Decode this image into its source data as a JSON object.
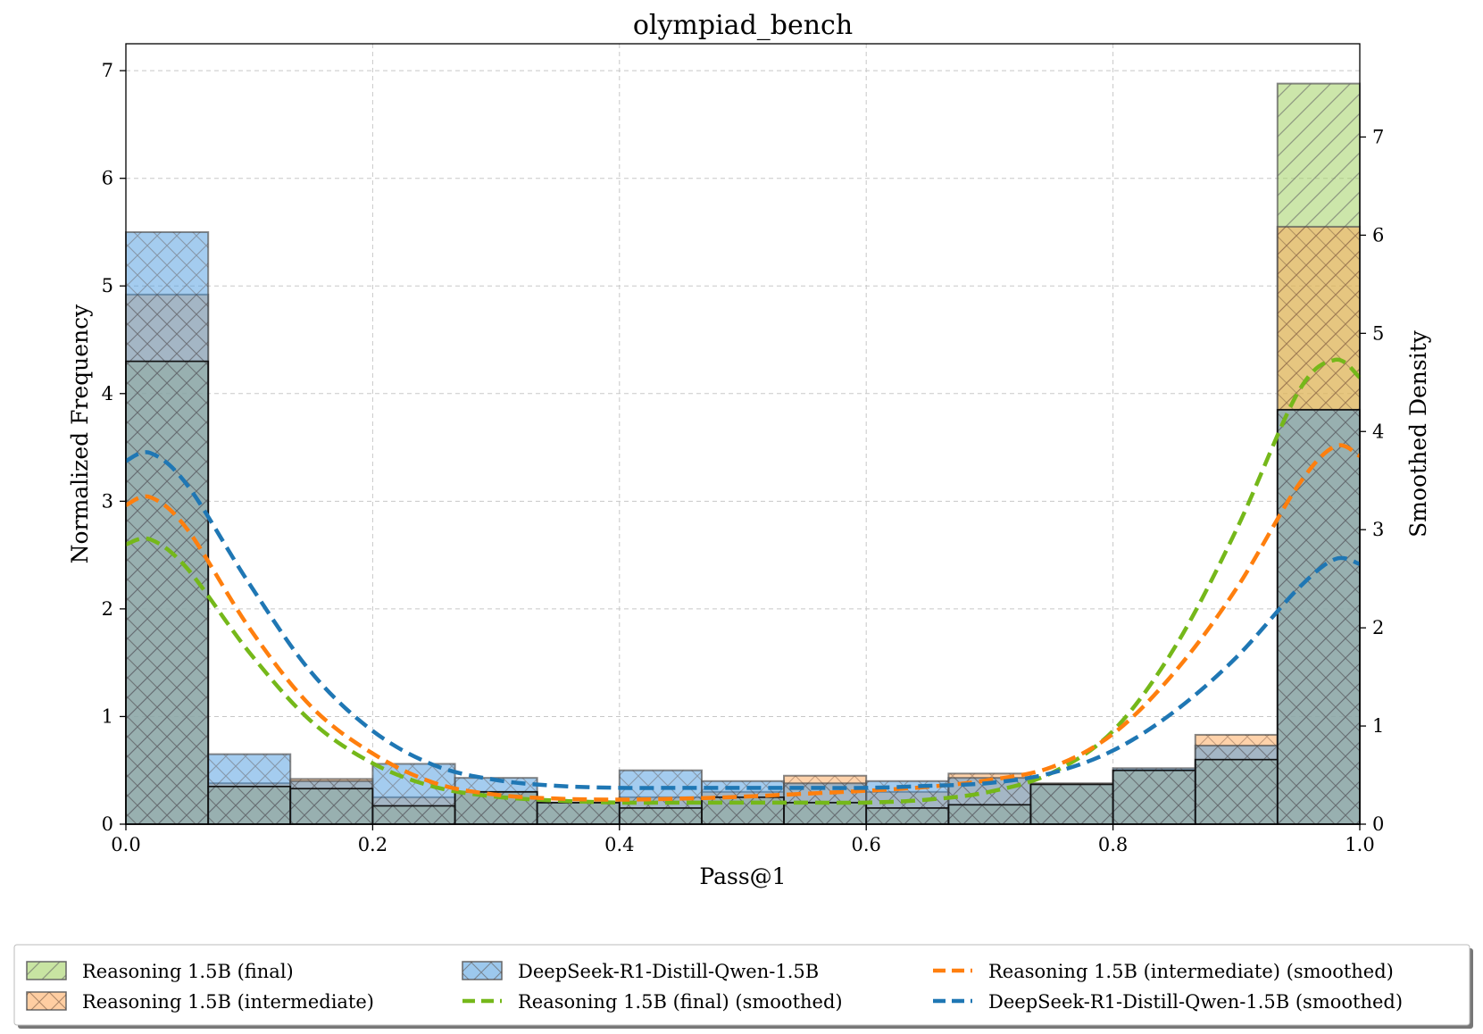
{
  "chart_data": {
    "type": "bar",
    "title": "olympiad_bench",
    "xlabel": "Pass@1",
    "ylabel": "Normalized Frequency",
    "y2label": "Smoothed Density",
    "xlim": [
      0.0,
      1.0
    ],
    "ylim": [
      0,
      7.25
    ],
    "y2lim": [
      0,
      7.95
    ],
    "grid": true,
    "legend_position": "bottom",
    "x_ticks": [
      "0.0",
      "0.2",
      "0.4",
      "0.6",
      "0.8",
      "1.0"
    ],
    "y_ticks": [
      "0",
      "1",
      "2",
      "3",
      "4",
      "5",
      "6",
      "7"
    ],
    "y2_ticks": [
      "0",
      "1",
      "2",
      "3",
      "4",
      "5",
      "6",
      "7"
    ],
    "bin_edges": [
      0.0,
      0.0667,
      0.1333,
      0.2,
      0.2667,
      0.3333,
      0.4,
      0.4667,
      0.5333,
      0.6,
      0.6667,
      0.7333,
      0.8,
      0.8667,
      0.9333,
      1.0
    ],
    "series": [
      {
        "name": "Reasoning 1.5B (final)",
        "kind": "histogram",
        "color": "#9ACD56",
        "hatch": "/",
        "values": [
          4.3,
          0.35,
          0.33,
          0.17,
          0.3,
          0.2,
          0.15,
          0.25,
          0.2,
          0.15,
          0.18,
          0.37,
          0.5,
          0.6,
          6.88
        ]
      },
      {
        "name": "Reasoning 1.5B (intermediate)",
        "kind": "histogram",
        "color": "#FFA556",
        "hatch": "x",
        "values": [
          4.92,
          0.38,
          0.42,
          0.25,
          0.3,
          0.2,
          0.25,
          0.3,
          0.45,
          0.3,
          0.47,
          0.38,
          0.5,
          0.83,
          5.55
        ]
      },
      {
        "name": "DeepSeek-R1-Distill-Qwen-1.5B",
        "kind": "histogram",
        "color": "#4A9ADF",
        "hatch": "x",
        "values": [
          5.5,
          0.65,
          0.4,
          0.56,
          0.43,
          0.2,
          0.5,
          0.4,
          0.38,
          0.4,
          0.43,
          0.37,
          0.52,
          0.73,
          3.85
        ]
      },
      {
        "name": "Reasoning 1.5B (final) (smoothed)",
        "kind": "density",
        "color": "#75B81A",
        "x": [
          0.0,
          0.02,
          0.05,
          0.1,
          0.15,
          0.2,
          0.25,
          0.3,
          0.35,
          0.4,
          0.45,
          0.5,
          0.55,
          0.6,
          0.65,
          0.7,
          0.75,
          0.8,
          0.85,
          0.9,
          0.95,
          0.98,
          1.0
        ],
        "y": [
          2.85,
          2.9,
          2.6,
          1.75,
          1.05,
          0.62,
          0.38,
          0.28,
          0.24,
          0.22,
          0.22,
          0.22,
          0.22,
          0.22,
          0.25,
          0.33,
          0.52,
          0.95,
          1.8,
          3.0,
          4.4,
          4.73,
          4.55
        ]
      },
      {
        "name": "Reasoning 1.5B (intermediate) (smoothed)",
        "kind": "density",
        "color": "#FF7F0E",
        "x": [
          0.0,
          0.02,
          0.05,
          0.1,
          0.15,
          0.2,
          0.25,
          0.3,
          0.35,
          0.4,
          0.45,
          0.5,
          0.55,
          0.6,
          0.65,
          0.7,
          0.75,
          0.8,
          0.85,
          0.9,
          0.95,
          0.98,
          1.0
        ],
        "y": [
          3.25,
          3.33,
          3.0,
          2.0,
          1.2,
          0.72,
          0.42,
          0.3,
          0.26,
          0.25,
          0.26,
          0.28,
          0.31,
          0.34,
          0.38,
          0.45,
          0.58,
          0.92,
          1.55,
          2.4,
          3.45,
          3.85,
          3.75
        ]
      },
      {
        "name": "DeepSeek-R1-Distill-Qwen-1.5B (smoothed)",
        "kind": "density",
        "color": "#1F77B4",
        "x": [
          0.0,
          0.02,
          0.05,
          0.1,
          0.15,
          0.2,
          0.25,
          0.3,
          0.35,
          0.4,
          0.45,
          0.5,
          0.55,
          0.6,
          0.65,
          0.7,
          0.75,
          0.8,
          0.85,
          0.9,
          0.95,
          0.98,
          1.0
        ],
        "y": [
          3.7,
          3.78,
          3.45,
          2.45,
          1.55,
          0.95,
          0.6,
          0.45,
          0.39,
          0.37,
          0.37,
          0.37,
          0.37,
          0.37,
          0.39,
          0.42,
          0.52,
          0.75,
          1.15,
          1.7,
          2.4,
          2.7,
          2.65
        ]
      }
    ]
  },
  "legend": {
    "items": [
      {
        "label": "Reasoning 1.5B (final)",
        "kind": "patch",
        "color": "#9ACD56",
        "hatch": "/"
      },
      {
        "label": "Reasoning 1.5B (intermediate)",
        "kind": "patch",
        "color": "#FFA556",
        "hatch": "x"
      },
      {
        "label": "DeepSeek-R1-Distill-Qwen-1.5B",
        "kind": "patch",
        "color": "#4A9ADF",
        "hatch": "x"
      },
      {
        "label": "Reasoning 1.5B (final) (smoothed)",
        "kind": "line",
        "color": "#75B81A"
      },
      {
        "label": "Reasoning 1.5B (intermediate) (smoothed)",
        "kind": "line",
        "color": "#FF7F0E"
      },
      {
        "label": "DeepSeek-R1-Distill-Qwen-1.5B (smoothed)",
        "kind": "line",
        "color": "#1F77B4"
      }
    ]
  }
}
